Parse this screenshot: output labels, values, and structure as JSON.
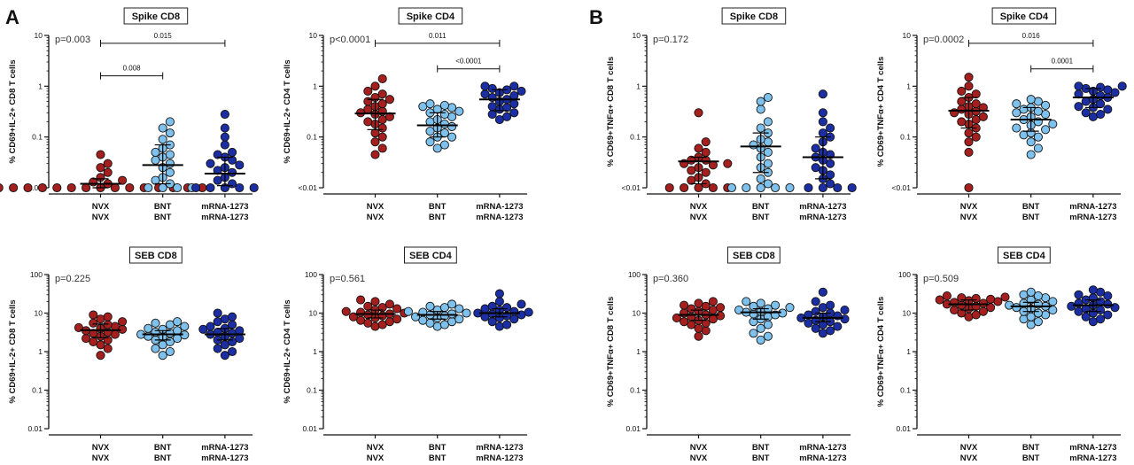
{
  "panel_labels": [
    "A",
    "B"
  ],
  "colors": {
    "NVX": "#a51f1f",
    "BNT": "#7ec1ec",
    "mRNA-1273": "#1c2ea3",
    "outline": "#111111"
  },
  "chart_data": [
    {
      "type": "scatter",
      "title": "Spike CD8",
      "ylabel": "% CD69+IL-2+ CD8 T cells",
      "pvalue": "p=0.003",
      "scale": "log",
      "ylim": [
        0.01,
        10
      ],
      "yticks": [
        "<0.01",
        "0.1",
        "1",
        "10"
      ],
      "categories": [
        "NVX",
        "BNT",
        "mRNA-1273"
      ],
      "categories_line2": [
        "NVX",
        "BNT",
        "mRNA-1273"
      ],
      "series": [
        {
          "values": [
            0.01,
            0.01,
            0.01,
            0.01,
            0.01,
            0.01,
            0.01,
            0.01,
            0.01,
            0.01,
            0.01,
            0.01,
            0.01,
            0.01,
            0.01,
            0.012,
            0.013,
            0.014,
            0.016,
            0.02,
            0.025,
            0.03,
            0.045
          ],
          "center": 0.012,
          "error": [
            0.01,
            0.015
          ]
        },
        {
          "values": [
            0.01,
            0.01,
            0.01,
            0.01,
            0.012,
            0.014,
            0.016,
            0.02,
            0.025,
            0.03,
            0.035,
            0.04,
            0.045,
            0.05,
            0.06,
            0.07,
            0.09,
            0.12,
            0.15,
            0.2
          ],
          "center": 0.028,
          "error": [
            0.012,
            0.07
          ]
        },
        {
          "values": [
            0.01,
            0.01,
            0.01,
            0.01,
            0.01,
            0.012,
            0.014,
            0.016,
            0.02,
            0.022,
            0.025,
            0.028,
            0.03,
            0.035,
            0.04,
            0.045,
            0.05,
            0.07,
            0.1,
            0.15,
            0.28
          ],
          "center": 0.019,
          "error": [
            0.011,
            0.04
          ]
        }
      ],
      "brackets": [
        {
          "from": 0,
          "to": 1,
          "label": "0.008",
          "y": 1.6
        },
        {
          "from": 0,
          "to": 2,
          "label": "0.015",
          "y": 7
        }
      ]
    },
    {
      "type": "scatter",
      "title": "Spike CD4",
      "ylabel": "% CD69+IL-2+ CD4 T cells",
      "pvalue": "p<0.0001",
      "scale": "log",
      "ylim": [
        0.01,
        10
      ],
      "yticks": [
        "<0.01",
        "0.1",
        "1",
        "10"
      ],
      "categories": [
        "NVX",
        "BNT",
        "mRNA-1273"
      ],
      "categories_line2": [
        "NVX",
        "BNT",
        "mRNA-1273"
      ],
      "series": [
        {
          "values": [
            0.045,
            0.06,
            0.08,
            0.1,
            0.12,
            0.15,
            0.18,
            0.2,
            0.22,
            0.25,
            0.28,
            0.3,
            0.32,
            0.35,
            0.4,
            0.45,
            0.5,
            0.55,
            0.6,
            0.7,
            0.8,
            1.0,
            1.4
          ],
          "center": 0.29,
          "error": [
            0.14,
            0.55
          ]
        },
        {
          "values": [
            0.06,
            0.07,
            0.08,
            0.1,
            0.1,
            0.12,
            0.13,
            0.15,
            0.16,
            0.18,
            0.2,
            0.22,
            0.25,
            0.28,
            0.3,
            0.32,
            0.35,
            0.38,
            0.4,
            0.42,
            0.45
          ],
          "center": 0.17,
          "error": [
            0.1,
            0.3
          ]
        },
        {
          "values": [
            0.22,
            0.25,
            0.28,
            0.3,
            0.35,
            0.38,
            0.4,
            0.45,
            0.5,
            0.55,
            0.6,
            0.65,
            0.7,
            0.75,
            0.8,
            0.85,
            0.9,
            1.0,
            1.0
          ],
          "center": 0.55,
          "error": [
            0.33,
            0.85
          ]
        }
      ],
      "brackets": [
        {
          "from": 1,
          "to": 2,
          "label": "<0.0001",
          "y": 2.2
        },
        {
          "from": 0,
          "to": 2,
          "label": "0.011",
          "y": 7
        }
      ]
    },
    {
      "type": "scatter",
      "title": "Spike CD8",
      "ylabel": "% CD69+TNFα+ CD8 T cells",
      "pvalue": "p=0.172",
      "scale": "log",
      "ylim": [
        0.01,
        10
      ],
      "yticks": [
        "<0.01",
        "0.1",
        "1",
        "10"
      ],
      "categories": [
        "NVX",
        "BNT",
        "mRNA-1273"
      ],
      "categories_line2": [
        "NVX",
        "BNT",
        "mRNA-1273"
      ],
      "series": [
        {
          "values": [
            0.01,
            0.01,
            0.01,
            0.01,
            0.01,
            0.012,
            0.014,
            0.016,
            0.02,
            0.022,
            0.025,
            0.028,
            0.03,
            0.03,
            0.035,
            0.035,
            0.04,
            0.05,
            0.06,
            0.08,
            0.3
          ],
          "center": 0.033,
          "error": [
            0.012,
            0.04
          ]
        },
        {
          "values": [
            0.01,
            0.01,
            0.01,
            0.01,
            0.01,
            0.012,
            0.015,
            0.02,
            0.025,
            0.03,
            0.04,
            0.05,
            0.06,
            0.07,
            0.08,
            0.09,
            0.12,
            0.15,
            0.2,
            0.35,
            0.5,
            0.6
          ],
          "center": 0.065,
          "error": [
            0.02,
            0.12
          ]
        },
        {
          "values": [
            0.01,
            0.01,
            0.01,
            0.01,
            0.012,
            0.015,
            0.018,
            0.022,
            0.025,
            0.03,
            0.035,
            0.04,
            0.045,
            0.05,
            0.06,
            0.08,
            0.1,
            0.12,
            0.15,
            0.2,
            0.3,
            0.7
          ],
          "center": 0.04,
          "error": [
            0.015,
            0.1
          ]
        }
      ],
      "brackets": []
    },
    {
      "type": "scatter",
      "title": "Spike CD4",
      "ylabel": "% CD69+TNFα+ CD4 T cells",
      "pvalue": "p=0.0002",
      "scale": "log",
      "ylim": [
        0.01,
        10
      ],
      "yticks": [
        "<0.01",
        "0.1",
        "1",
        "10"
      ],
      "categories": [
        "NVX",
        "BNT",
        "mRNA-1273"
      ],
      "categories_line2": [
        "NVX",
        "BNT",
        "mRNA-1273"
      ],
      "series": [
        {
          "values": [
            0.01,
            0.05,
            0.08,
            0.1,
            0.12,
            0.15,
            0.18,
            0.2,
            0.22,
            0.25,
            0.28,
            0.3,
            0.32,
            0.35,
            0.38,
            0.4,
            0.45,
            0.5,
            0.6,
            0.7,
            0.8,
            1.0,
            1.5
          ],
          "center": 0.33,
          "error": [
            0.15,
            0.6
          ]
        },
        {
          "values": [
            0.045,
            0.06,
            0.08,
            0.1,
            0.11,
            0.12,
            0.14,
            0.15,
            0.17,
            0.18,
            0.2,
            0.22,
            0.25,
            0.28,
            0.3,
            0.32,
            0.35,
            0.38,
            0.42,
            0.45,
            0.5,
            0.55
          ],
          "center": 0.22,
          "error": [
            0.13,
            0.38
          ]
        },
        {
          "values": [
            0.25,
            0.28,
            0.3,
            0.35,
            0.38,
            0.4,
            0.45,
            0.5,
            0.55,
            0.6,
            0.65,
            0.7,
            0.75,
            0.8,
            0.85,
            0.9,
            0.95,
            1.0,
            1.0
          ],
          "center": 0.6,
          "error": [
            0.38,
            0.9
          ]
        }
      ],
      "brackets": [
        {
          "from": 1,
          "to": 2,
          "label": "0.0001",
          "y": 2.2
        },
        {
          "from": 0,
          "to": 2,
          "label": "0.016",
          "y": 7
        }
      ]
    },
    {
      "type": "scatter",
      "title": "SEB CD8",
      "ylabel": "% CD69+IL-2+ CD8 T cells",
      "pvalue": "p=0.225",
      "scale": "log",
      "ylim": [
        0.01,
        100
      ],
      "yticks": [
        "0.01",
        "0.1",
        "1",
        "10",
        "100"
      ],
      "categories": [
        "NVX",
        "BNT",
        "mRNA-1273"
      ],
      "categories_line2": [
        "NVX",
        "BNT",
        "mRNA-1273"
      ],
      "series": [
        {
          "values": [
            0.8,
            1.2,
            1.5,
            1.8,
            2.0,
            2.2,
            2.5,
            2.8,
            3.0,
            3.2,
            3.5,
            3.8,
            4.0,
            4.2,
            4.5,
            5.0,
            5.5,
            6.0,
            7.0,
            8.0,
            9.0
          ],
          "center": 3.6,
          "error": [
            2.3,
            5.2
          ]
        },
        {
          "values": [
            0.8,
            1.0,
            1.2,
            1.5,
            1.8,
            2.0,
            2.2,
            2.4,
            2.5,
            2.7,
            2.8,
            3.0,
            3.2,
            3.5,
            3.8,
            4.0,
            4.5,
            5.0,
            5.5,
            6.0
          ],
          "center": 2.8,
          "error": [
            2.0,
            3.5
          ]
        },
        {
          "values": [
            0.8,
            1.0,
            1.2,
            1.5,
            1.8,
            2.0,
            2.2,
            2.5,
            2.8,
            3.0,
            3.2,
            3.5,
            3.8,
            4.0,
            4.5,
            5.0,
            6.0,
            7.0,
            8.0,
            10.0
          ],
          "center": 2.8,
          "error": [
            2.0,
            4.0
          ]
        }
      ],
      "brackets": []
    },
    {
      "type": "scatter",
      "title": "SEB CD4",
      "ylabel": "% CD69+IL-2+ CD4 T cells",
      "pvalue": "p=0.561",
      "scale": "log",
      "ylim": [
        0.01,
        100
      ],
      "yticks": [
        "0.01",
        "0.1",
        "1",
        "10",
        "100"
      ],
      "categories": [
        "NVX",
        "BNT",
        "mRNA-1273"
      ],
      "categories_line2": [
        "NVX",
        "BNT",
        "mRNA-1273"
      ],
      "series": [
        {
          "values": [
            4.5,
            5,
            5.5,
            6,
            6.5,
            7,
            7.5,
            8,
            8.5,
            9,
            9.5,
            10,
            10.5,
            11,
            12,
            13,
            14,
            15,
            17,
            20,
            22
          ],
          "center": 9.5,
          "error": [
            7.5,
            12
          ]
        },
        {
          "values": [
            4.5,
            5,
            5.5,
            6,
            6.5,
            7,
            7.5,
            8,
            8.5,
            9,
            9.5,
            10,
            10.5,
            11,
            12,
            13,
            14,
            15,
            17
          ],
          "center": 9,
          "error": [
            7,
            11
          ]
        },
        {
          "values": [
            4.5,
            5,
            6,
            7,
            7.5,
            8,
            8.5,
            9,
            9.5,
            10,
            10.5,
            11,
            12,
            13,
            14,
            15,
            17,
            20,
            32
          ],
          "center": 10,
          "error": [
            8,
            13
          ]
        }
      ],
      "brackets": []
    },
    {
      "type": "scatter",
      "title": "SEB CD8",
      "ylabel": "% CD69+TNFα+ CD8 T cells",
      "pvalue": "p=0.360",
      "scale": "log",
      "ylim": [
        0.01,
        100
      ],
      "yticks": [
        "0.01",
        "0.1",
        "1",
        "10",
        "100"
      ],
      "categories": [
        "NVX",
        "BNT",
        "mRNA-1273"
      ],
      "categories_line2": [
        "NVX",
        "BNT",
        "mRNA-1273"
      ],
      "series": [
        {
          "values": [
            2.5,
            3.5,
            4,
            5,
            5.5,
            6,
            6.5,
            7,
            7.5,
            8,
            8.5,
            9,
            10,
            11,
            12,
            13,
            14,
            15,
            16,
            18,
            20
          ],
          "center": 9,
          "error": [
            6.5,
            12
          ]
        },
        {
          "values": [
            2,
            2.5,
            3,
            4,
            5,
            6,
            7,
            8,
            9,
            9.5,
            10,
            10.5,
            11,
            12,
            13,
            14,
            15,
            16,
            18,
            20
          ],
          "center": 10.5,
          "error": [
            7,
            13
          ]
        },
        {
          "values": [
            3,
            3.5,
            4,
            4.5,
            5,
            5.5,
            6,
            6.5,
            7,
            7.5,
            8,
            8.5,
            9,
            10,
            11,
            12,
            14,
            16,
            20,
            35
          ],
          "center": 7.5,
          "error": [
            6,
            10
          ]
        }
      ],
      "brackets": []
    },
    {
      "type": "scatter",
      "title": "SEB CD4",
      "ylabel": "% CD69+TNFα+ CD4 T cells",
      "pvalue": "p=0.509",
      "scale": "log",
      "ylim": [
        0.01,
        100
      ],
      "yticks": [
        "0.01",
        "0.1",
        "1",
        "10",
        "100"
      ],
      "categories": [
        "NVX",
        "BNT",
        "mRNA-1273"
      ],
      "categories_line2": [
        "NVX",
        "BNT",
        "mRNA-1273"
      ],
      "series": [
        {
          "values": [
            8,
            9,
            10,
            11,
            12,
            13,
            14,
            15,
            16,
            17,
            18,
            19,
            20,
            21,
            22,
            23,
            24,
            25,
            26,
            28
          ],
          "center": 17,
          "error": [
            12,
            22
          ]
        },
        {
          "values": [
            5,
            6,
            7,
            8,
            9,
            10,
            11,
            12,
            13,
            14,
            15,
            16,
            17,
            18,
            20,
            22,
            25,
            28,
            30,
            35
          ],
          "center": 15,
          "error": [
            11,
            19
          ]
        },
        {
          "values": [
            6,
            7,
            8,
            9,
            10,
            11,
            12,
            13,
            14,
            15,
            16,
            17,
            18,
            20,
            22,
            25,
            28,
            30,
            35,
            40
          ],
          "center": 16,
          "error": [
            11,
            22
          ]
        }
      ],
      "brackets": []
    }
  ]
}
